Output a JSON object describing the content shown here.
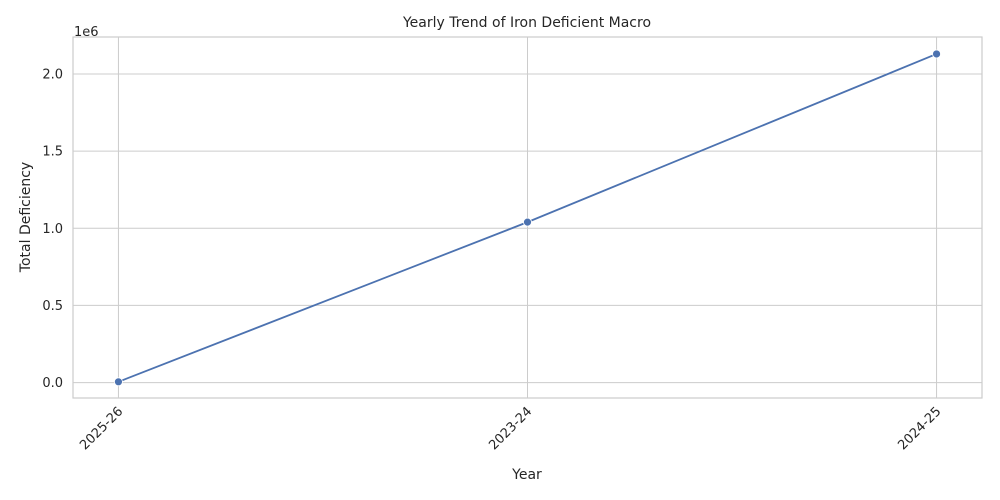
{
  "chart_data": {
    "type": "line",
    "title": "Yearly Trend of Iron Deficient Macro",
    "xlabel": "Year",
    "ylabel": "Total Deficiency",
    "y_multiplier_label": "1e6",
    "categories": [
      "2025-26",
      "2023-24",
      "2024-25"
    ],
    "series": [
      {
        "values": [
          5000,
          1040000,
          2130000
        ]
      }
    ],
    "ylim": [
      -100000,
      2240000
    ],
    "y_ticks": [
      0,
      500000,
      1000000,
      1500000,
      2000000
    ],
    "y_tick_labels": [
      "0.0",
      "0.5",
      "1.0",
      "1.5",
      "2.0"
    ],
    "grid": true,
    "x_tick_rotation_deg": 45,
    "line_color": "#4c72b0",
    "grid_color": "#cccccc"
  }
}
